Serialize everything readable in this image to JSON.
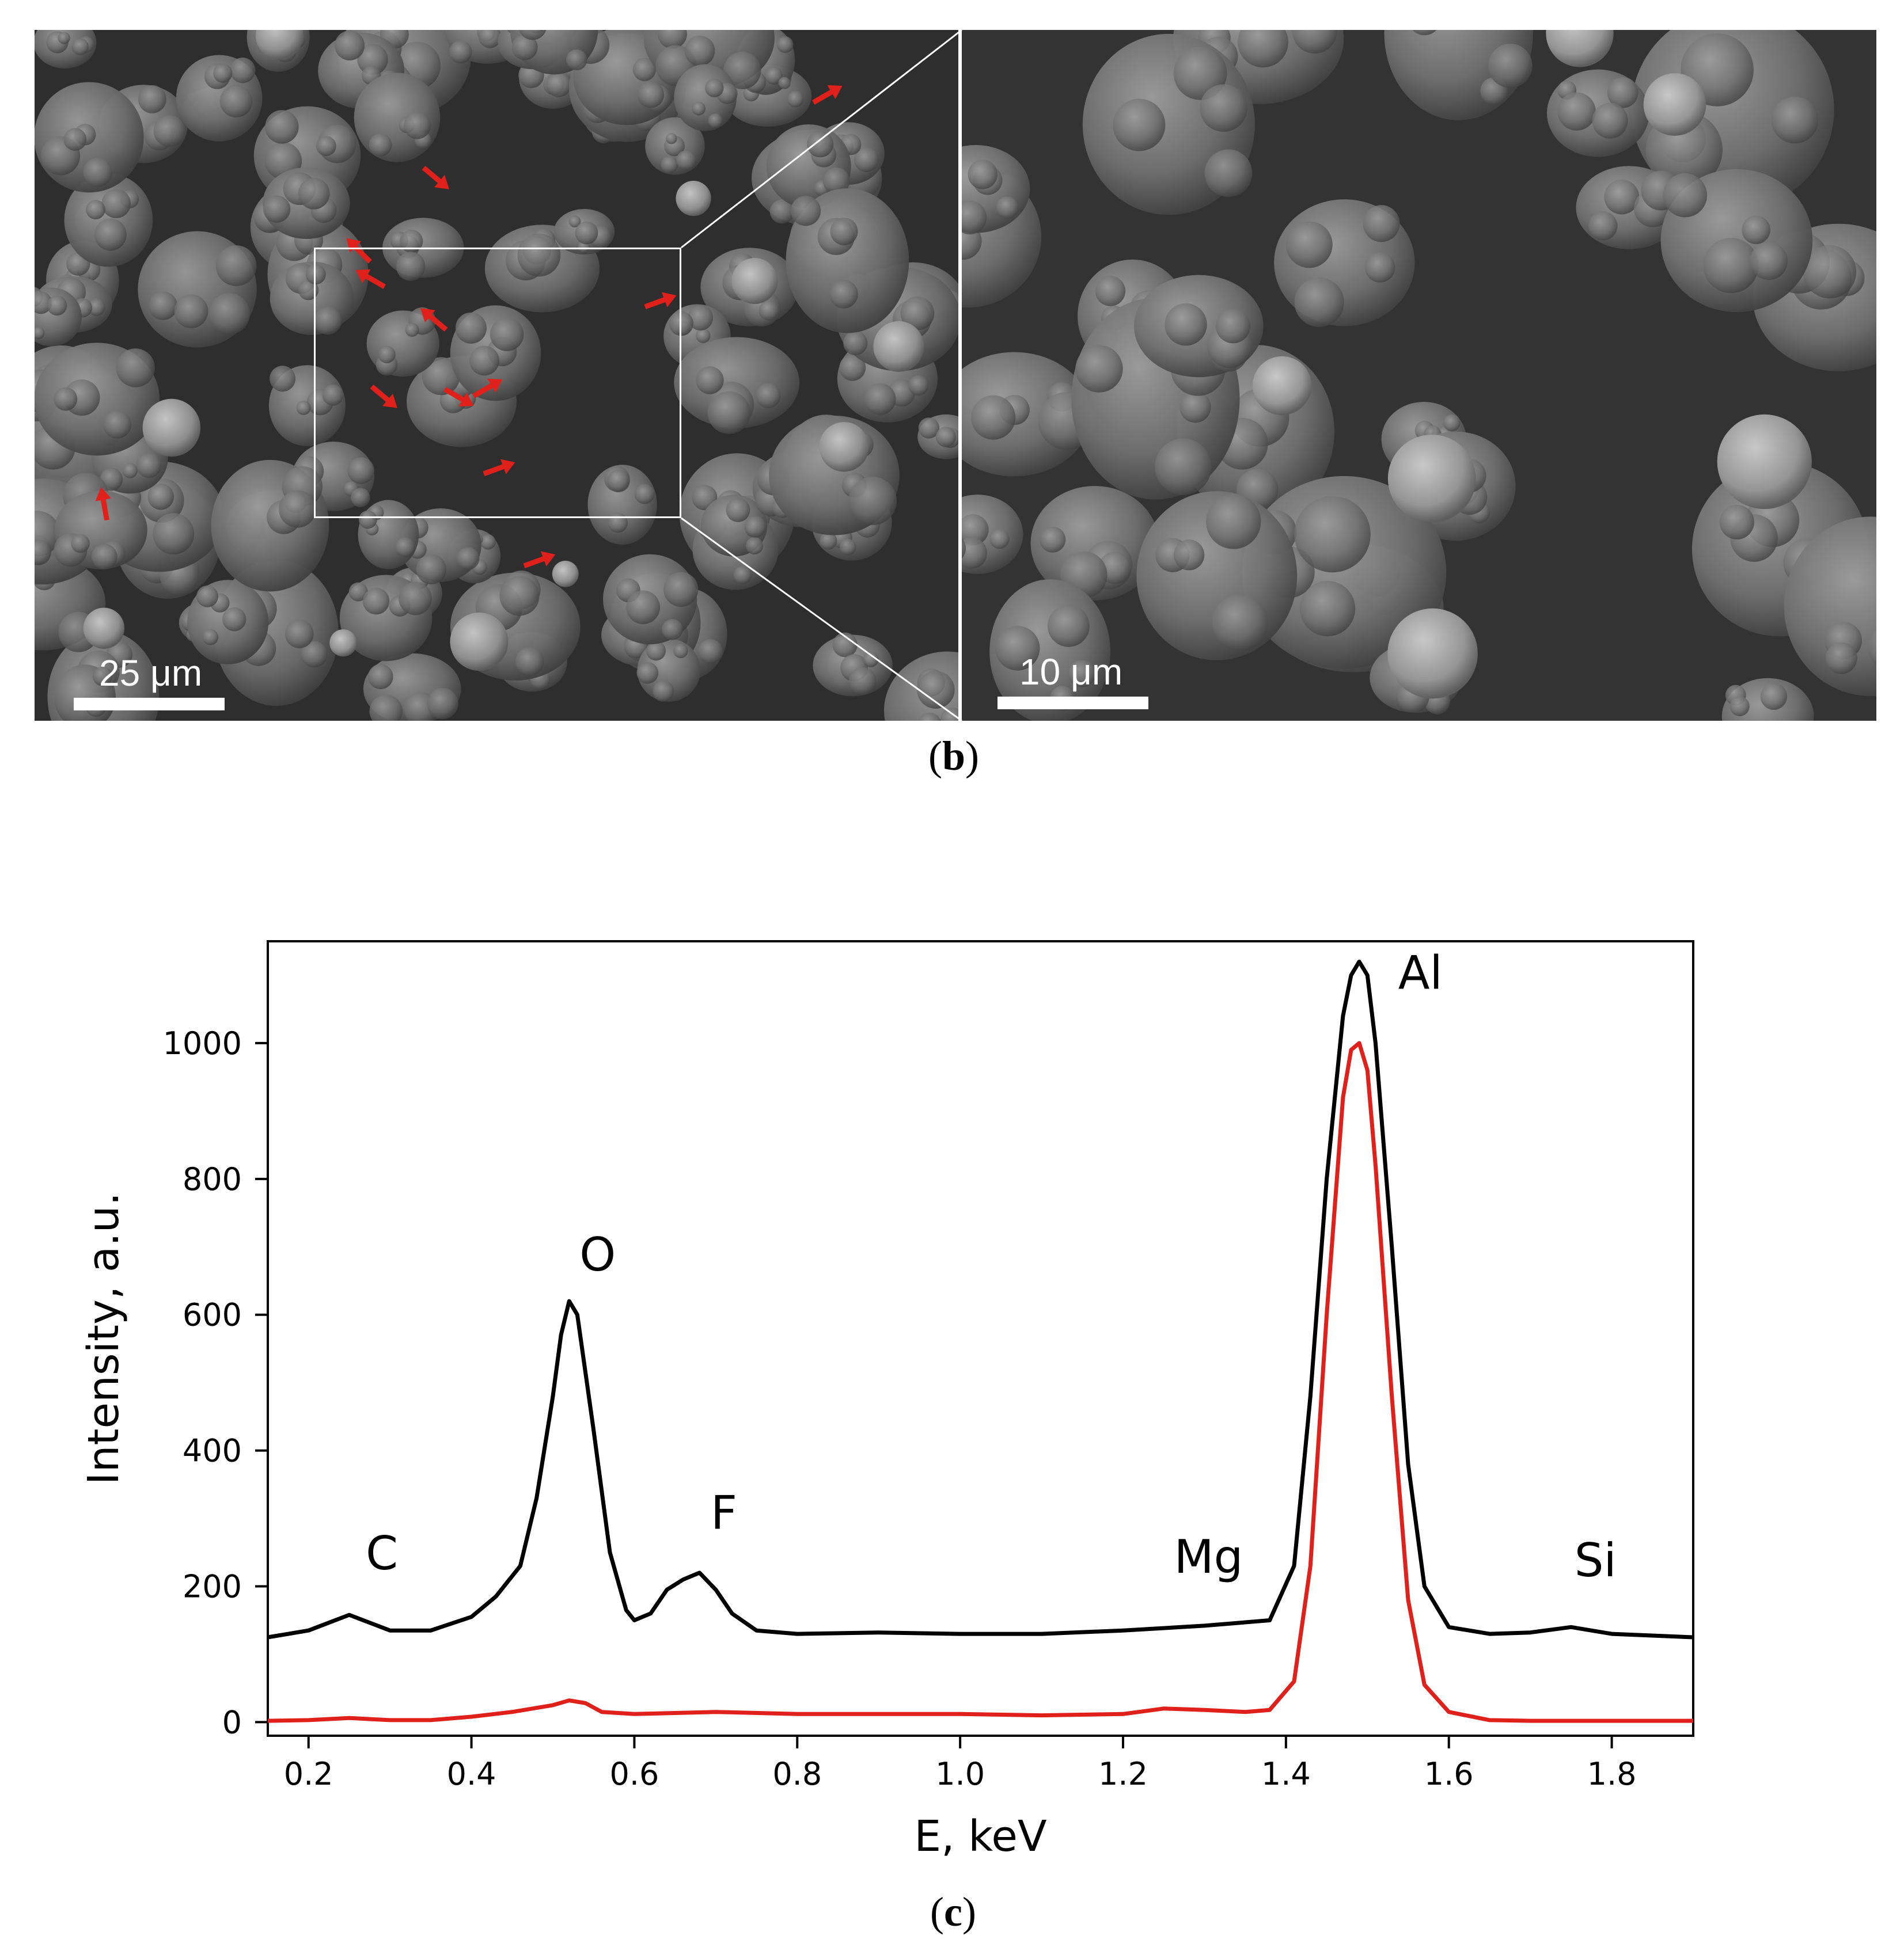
{
  "figure": {
    "panel_b_label_open": "(",
    "panel_b_label_letter": "b",
    "panel_b_label_close": ")",
    "panel_c_label_open": "(",
    "panel_c_label_letter": "c",
    "panel_c_label_close": ")"
  },
  "sem": {
    "left_scale_label": "25 μm",
    "right_scale_label": "10 μm",
    "arrow_color": "#e0201b",
    "inset_color": "#ffffff",
    "arrow_count": 12
  },
  "chart_data": {
    "type": "line",
    "title": "",
    "xlabel": "E, keV",
    "ylabel": "Intensity, a.u.",
    "xlim": [
      0.15,
      1.9
    ],
    "ylim": [
      -20,
      1150
    ],
    "xticks": [
      "0.2",
      "0.4",
      "0.6",
      "0.8",
      "1.0",
      "1.2",
      "1.4",
      "1.6",
      "1.8"
    ],
    "yticks": [
      "0",
      "200",
      "400",
      "600",
      "800",
      "1000"
    ],
    "grid": false,
    "series": [
      {
        "color": "#000000",
        "x": [
          0.15,
          0.2,
          0.25,
          0.3,
          0.35,
          0.4,
          0.43,
          0.46,
          0.48,
          0.5,
          0.51,
          0.52,
          0.53,
          0.55,
          0.57,
          0.59,
          0.6,
          0.62,
          0.64,
          0.66,
          0.68,
          0.7,
          0.72,
          0.75,
          0.8,
          0.9,
          1.0,
          1.1,
          1.2,
          1.3,
          1.38,
          1.41,
          1.43,
          1.45,
          1.47,
          1.48,
          1.49,
          1.5,
          1.51,
          1.53,
          1.55,
          1.57,
          1.6,
          1.65,
          1.7,
          1.75,
          1.8,
          1.9
        ],
        "y": [
          125,
          135,
          158,
          135,
          135,
          155,
          185,
          230,
          330,
          480,
          570,
          620,
          600,
          430,
          250,
          165,
          150,
          160,
          195,
          210,
          220,
          195,
          160,
          135,
          130,
          132,
          130,
          130,
          135,
          142,
          150,
          230,
          480,
          800,
          1040,
          1100,
          1120,
          1100,
          1000,
          700,
          380,
          200,
          140,
          130,
          132,
          140,
          130,
          125
        ]
      },
      {
        "color": "#e0201b",
        "x": [
          0.15,
          0.2,
          0.25,
          0.3,
          0.35,
          0.4,
          0.45,
          0.5,
          0.52,
          0.54,
          0.56,
          0.6,
          0.7,
          0.8,
          0.9,
          1.0,
          1.1,
          1.2,
          1.25,
          1.3,
          1.35,
          1.38,
          1.41,
          1.43,
          1.45,
          1.47,
          1.48,
          1.49,
          1.5,
          1.51,
          1.53,
          1.55,
          1.57,
          1.6,
          1.65,
          1.7,
          1.8,
          1.9
        ],
        "y": [
          2,
          3,
          6,
          3,
          3,
          8,
          15,
          25,
          32,
          28,
          15,
          12,
          15,
          12,
          12,
          12,
          10,
          12,
          20,
          18,
          15,
          18,
          60,
          230,
          600,
          920,
          990,
          1000,
          960,
          820,
          480,
          180,
          55,
          15,
          3,
          2,
          2,
          2
        ]
      }
    ],
    "annotations": [
      {
        "text": "C",
        "x": 0.29,
        "y": 225
      },
      {
        "text": "O",
        "x": 0.555,
        "y": 665
      },
      {
        "text": "F",
        "x": 0.71,
        "y": 285
      },
      {
        "text": "Mg",
        "x": 1.305,
        "y": 220
      },
      {
        "text": "Al",
        "x": 1.565,
        "y": 1080
      },
      {
        "text": "Si",
        "x": 1.78,
        "y": 215
      }
    ]
  }
}
